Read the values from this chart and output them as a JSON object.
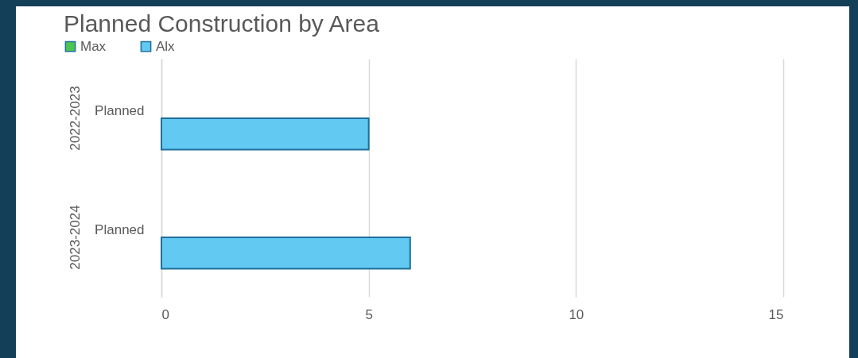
{
  "chart_data": {
    "type": "bar",
    "orientation": "horizontal",
    "title": "Planned Construction by Area",
    "categories": [
      "Planned",
      "Planned"
    ],
    "series": [
      {
        "name": "Max",
        "color": "#4cc552",
        "values": [
          null,
          null
        ]
      },
      {
        "name": "Alx",
        "color": "#62c9f2",
        "values": [
          5,
          6
        ]
      }
    ],
    "annotations": [
      "2022-2023",
      "2023-2024"
    ],
    "xlim": [
      0,
      15
    ],
    "xticks": [
      0,
      5,
      10,
      15
    ],
    "grid": true,
    "legend": "top"
  }
}
